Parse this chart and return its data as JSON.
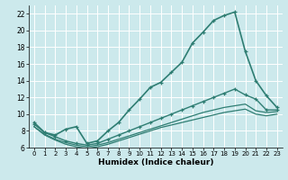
{
  "xlabel": "Humidex (Indice chaleur)",
  "background_color": "#cce9ec",
  "line_color": "#2e7d72",
  "grid_color": "#ffffff",
  "xlim": [
    -0.5,
    23.5
  ],
  "ylim": [
    6,
    23
  ],
  "yticks": [
    6,
    8,
    10,
    12,
    14,
    16,
    18,
    20,
    22
  ],
  "xticks": [
    0,
    1,
    2,
    3,
    4,
    5,
    6,
    7,
    8,
    9,
    10,
    11,
    12,
    13,
    14,
    15,
    16,
    17,
    18,
    19,
    20,
    21,
    22,
    23
  ],
  "lines": [
    {
      "x": [
        0,
        1,
        2,
        3,
        4,
        5,
        6,
        7,
        8,
        9,
        10,
        11,
        12,
        13,
        14,
        15,
        16,
        17,
        18,
        19,
        20,
        21,
        22,
        23
      ],
      "y": [
        9.0,
        7.8,
        7.5,
        8.2,
        8.5,
        6.5,
        6.8,
        8.0,
        9.0,
        10.5,
        11.8,
        13.2,
        13.8,
        15.0,
        16.2,
        18.5,
        19.8,
        21.2,
        21.8,
        22.2,
        17.5,
        14.0,
        12.2,
        10.8
      ],
      "marker": "+",
      "lw": 1.2
    },
    {
      "x": [
        0,
        1,
        2,
        3,
        4,
        5,
        6,
        7,
        8,
        9,
        10,
        11,
        12,
        13,
        14,
        15,
        16,
        17,
        18,
        19,
        20,
        21,
        22,
        23
      ],
      "y": [
        8.8,
        7.8,
        7.3,
        6.8,
        6.5,
        6.3,
        6.5,
        7.0,
        7.5,
        8.0,
        8.5,
        9.0,
        9.5,
        10.0,
        10.5,
        11.0,
        11.5,
        12.0,
        12.5,
        13.0,
        12.3,
        11.8,
        10.5,
        10.5
      ],
      "marker": "+",
      "lw": 1.0
    },
    {
      "x": [
        0,
        1,
        2,
        3,
        4,
        5,
        6,
        7,
        8,
        9,
        10,
        11,
        12,
        13,
        14,
        15,
        16,
        17,
        18,
        19,
        20,
        21,
        22,
        23
      ],
      "y": [
        8.5,
        7.6,
        7.0,
        6.6,
        6.3,
        6.1,
        6.3,
        6.6,
        7.0,
        7.4,
        7.8,
        8.2,
        8.6,
        9.0,
        9.4,
        9.8,
        10.2,
        10.5,
        10.8,
        11.0,
        11.2,
        10.4,
        10.2,
        10.3
      ],
      "marker": null,
      "lw": 0.9
    },
    {
      "x": [
        0,
        1,
        2,
        3,
        4,
        5,
        6,
        7,
        8,
        9,
        10,
        11,
        12,
        13,
        14,
        15,
        16,
        17,
        18,
        19,
        20,
        21,
        22,
        23
      ],
      "y": [
        8.5,
        7.5,
        6.9,
        6.4,
        6.1,
        5.9,
        6.1,
        6.4,
        6.8,
        7.2,
        7.6,
        8.0,
        8.4,
        8.7,
        9.0,
        9.3,
        9.6,
        9.9,
        10.2,
        10.4,
        10.6,
        10.0,
        9.8,
        10.0
      ],
      "marker": null,
      "lw": 0.9
    }
  ]
}
